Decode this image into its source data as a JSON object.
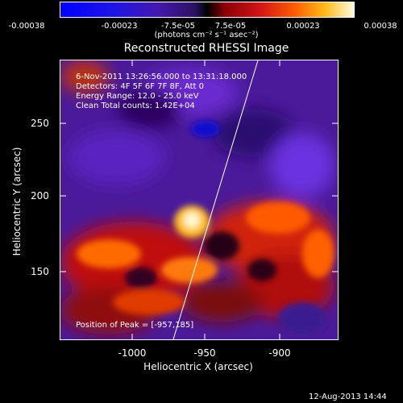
{
  "colorbar": {
    "ticks": [
      "-0.00038",
      "-0.00023",
      "-7.5e-05",
      "7.5e-05",
      "0.00023",
      "0.00038"
    ],
    "unit_label": "(photons cm⁻² s⁻¹ asec⁻²)"
  },
  "title": "Reconstructed RHESSI Image",
  "info": {
    "line1": "6-Nov-2011 13:26:56.000 to 13:31:18.000",
    "line2": "Detectors: 4F 5F 6F 7F 8F, Att 0",
    "line3": "Energy Range: 12.0 - 25.0 keV",
    "line4": "Clean    Total counts: 1.42E+04"
  },
  "peak_text": "Position of Peak = [-957,185]",
  "axes": {
    "xlabel": "Heliocentric X (arcsec)",
    "ylabel": "Heliocentric Y (arcsec)",
    "xticks": [
      "-1000",
      "-950",
      "-900"
    ],
    "yticks": [
      "250",
      "200",
      "150"
    ],
    "xlim": [
      -1050,
      -880
    ],
    "ylim": [
      110,
      285
    ]
  },
  "footer_date": "12-Aug-2013 14:44",
  "colors": {
    "background": "#000000",
    "axes": "#ffffff"
  }
}
